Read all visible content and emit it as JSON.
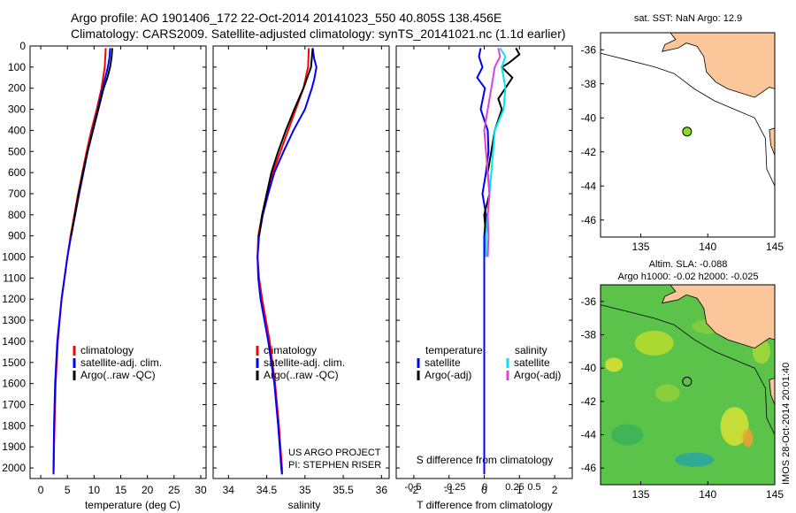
{
  "header": {
    "line1": "Argo profile: AO 1901406_172 22-Oct-2014 20141023_550 40.805S 138.456E",
    "line2": "Climatology: CARS2009. Satellite-adjusted climatology: synTS_20141021.nc (1.1d earlier)"
  },
  "side_text": "IMOS 28-Oct-2014 20:01:40",
  "credits": {
    "line1": "US ARGO PROJECT",
    "line2": "PI: STEPHEN RISER"
  },
  "colors": {
    "climatology": "#ff0000",
    "satellite": "#0000ff",
    "argo": "#000000",
    "sal_satellite": "#00e5ee",
    "sal_argo": "#e040e0",
    "land": "#fbc79a"
  },
  "chart_data": [
    {
      "type": "line",
      "xlabel": "temperature (deg C)",
      "xlim": [
        -2,
        31
      ],
      "ylim": [
        2050,
        0
      ],
      "xticks": [
        0,
        5,
        10,
        15,
        20,
        25,
        30
      ],
      "yticks": [
        0,
        100,
        200,
        300,
        400,
        500,
        600,
        700,
        800,
        900,
        1000,
        1100,
        1200,
        1300,
        1400,
        1500,
        1600,
        1700,
        1800,
        1900,
        2000
      ],
      "legend": [
        "climatology",
        "satellite-adj. clim.",
        "Argo(..raw -QC)"
      ],
      "series": [
        {
          "name": "climatology",
          "y": [
            10,
            100,
            200,
            300,
            400,
            500,
            700,
            900,
            1000,
            1200,
            1400,
            1600,
            1800,
            1900,
            2000,
            2030
          ],
          "x": [
            12.2,
            12.0,
            11.4,
            10.5,
            9.5,
            8.6,
            7.0,
            5.6,
            5.0,
            3.9,
            3.2,
            2.8,
            2.6,
            2.5,
            2.45,
            2.4
          ]
        },
        {
          "name": "satellite-adj. clim.",
          "y": [
            10,
            50,
            100,
            200,
            300,
            400,
            500,
            700,
            900,
            1000,
            1200,
            1400,
            1600,
            1800,
            1900,
            2000,
            2030
          ],
          "x": [
            13.0,
            12.9,
            12.6,
            11.6,
            10.7,
            9.7,
            8.8,
            7.2,
            5.7,
            5.0,
            3.9,
            3.1,
            2.7,
            2.5,
            2.45,
            2.4,
            2.4
          ]
        },
        {
          "name": "Argo(..raw -QC)",
          "y": [
            10,
            50,
            100,
            150,
            200,
            300,
            400,
            500,
            600,
            700,
            800,
            900
          ],
          "x": [
            13.4,
            13.3,
            13.0,
            12.5,
            11.8,
            10.8,
            9.8,
            8.8,
            7.9,
            7.1,
            6.4,
            5.7
          ]
        }
      ]
    },
    {
      "type": "line",
      "xlabel": "salinity",
      "xlim": [
        33.8,
        36.1
      ],
      "ylim": [
        2050,
        0
      ],
      "xticks": [
        34,
        34.5,
        35,
        35.5,
        36
      ],
      "legend": [
        "climatology",
        "satellite-adj. clim.",
        "Argo(..raw -QC)"
      ],
      "series": [
        {
          "name": "climatology",
          "y": [
            10,
            100,
            200,
            300,
            400,
            500,
            600,
            700,
            800,
            900,
            1000,
            1100,
            1200,
            1400,
            1600,
            1800,
            1900,
            2000,
            2030
          ],
          "x": [
            35.05,
            35.04,
            34.98,
            34.88,
            34.78,
            34.68,
            34.58,
            34.5,
            34.44,
            34.39,
            34.38,
            34.4,
            34.44,
            34.54,
            34.61,
            34.66,
            34.68,
            34.7,
            34.7
          ]
        },
        {
          "name": "satellite-adj. clim.",
          "y": [
            10,
            60,
            100,
            160,
            200,
            300,
            400,
            500,
            600,
            700,
            800,
            900,
            1000,
            1100,
            1200,
            1400,
            1600,
            1800,
            1900,
            2000,
            2030
          ],
          "x": [
            35.1,
            35.12,
            35.15,
            35.12,
            35.09,
            35.0,
            34.85,
            34.72,
            34.6,
            34.52,
            34.45,
            34.4,
            34.38,
            34.39,
            34.42,
            34.52,
            34.6,
            34.65,
            34.67,
            34.69,
            34.7
          ]
        },
        {
          "name": "Argo(..raw -QC)",
          "y": [
            10,
            100,
            150,
            200,
            300,
            400,
            500,
            600,
            700,
            800,
            900
          ],
          "x": [
            35.1,
            35.08,
            35.03,
            34.98,
            34.86,
            34.75,
            34.65,
            34.56,
            34.5,
            34.44,
            34.4
          ]
        }
      ]
    },
    {
      "type": "line",
      "xlabel": "T difference from climatology",
      "xlabel_top": "S difference from climatology",
      "xlim": [
        -2.5,
        2.5
      ],
      "ylim": [
        2050,
        0
      ],
      "xticks": [
        -2,
        -1,
        0,
        1,
        2
      ],
      "xticks_top": [
        -0.5,
        -0.25,
        0,
        0.25,
        0.5
      ],
      "legend_left": {
        "title": "temperature",
        "items": [
          "satellite",
          "Argo(-adj)"
        ]
      },
      "legend_right": {
        "title": "salinity",
        "items": [
          "satellite",
          "Argo(-adj)"
        ]
      },
      "series": [
        {
          "name": "satellite",
          "y": [
            10,
            50,
            100,
            150,
            200,
            300,
            400,
            500,
            600,
            700,
            800,
            900,
            1000,
            1200,
            1500,
            1800,
            2000,
            2030
          ],
          "x": [
            -0.1,
            -0.15,
            -0.05,
            -0.2,
            0.02,
            -0.1,
            0.1,
            0.12,
            0.05,
            -0.05,
            0.05,
            0.0,
            0.0,
            0.0,
            0.0,
            0.0,
            0.0,
            0.0
          ]
        },
        {
          "name": "Argo(-adj)",
          "y": [
            10,
            40,
            80,
            100,
            150,
            200,
            250,
            300,
            400,
            500,
            600,
            700,
            800,
            900
          ],
          "x": [
            0.9,
            1.0,
            0.7,
            0.5,
            0.8,
            0.6,
            0.4,
            0.5,
            0.3,
            0.2,
            0.1,
            0.15,
            0.0,
            0.05
          ]
        },
        {
          "name": "sal satellite",
          "y": [
            10,
            50,
            100,
            200,
            300,
            400,
            500,
            600,
            700,
            800,
            900,
            1000
          ],
          "x": [
            0.45,
            0.6,
            0.5,
            0.6,
            0.55,
            0.3,
            0.25,
            0.2,
            0.15,
            0.1,
            0.05,
            0.05
          ]
        },
        {
          "name": "sal Argo(-adj)",
          "y": [
            10,
            50,
            100,
            150,
            200,
            300,
            400,
            500,
            600,
            700,
            800,
            900,
            1000
          ],
          "x": [
            0.4,
            0.45,
            0.3,
            0.25,
            0.2,
            0.1,
            0.0,
            0.05,
            0.1,
            0.15,
            0.1,
            0.12,
            0.1
          ]
        }
      ]
    },
    {
      "type": "map",
      "title": "sat. SST: NaN Argo: 12.9",
      "xticks": [
        "135",
        "140",
        "145"
      ],
      "yticks": [
        "-36",
        "-38",
        "-40",
        "-42",
        "-44",
        "-46"
      ],
      "xlim": [
        132,
        145
      ],
      "ylim": [
        -47,
        -35
      ],
      "marker": {
        "lon": 138.456,
        "lat": -40.805,
        "color": "#88dd22"
      }
    },
    {
      "type": "map",
      "title_line1": "Altim. SLA: -0.088",
      "title_line2": "Argo h1000: -0.02 h2000: -0.025",
      "xticks": [
        "135",
        "140",
        "145"
      ],
      "yticks": [
        "-36",
        "-38",
        "-40",
        "-42",
        "-44",
        "-46"
      ],
      "xlim": [
        132,
        145
      ],
      "ylim": [
        -47,
        -35
      ],
      "marker": {
        "lon": 138.456,
        "lat": -40.805
      }
    }
  ]
}
